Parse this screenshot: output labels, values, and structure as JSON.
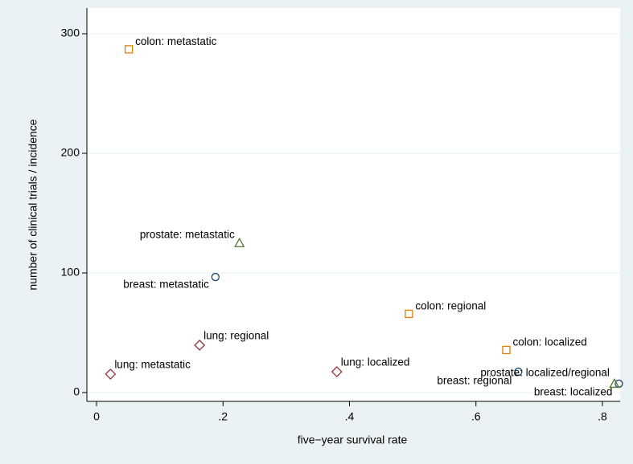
{
  "chart_data": {
    "type": "scatter",
    "x_label": "five−year survival rate",
    "y_label": "number of clinical trials / incidence",
    "xlim": [
      -0.0153,
      0.828
    ],
    "ylim": [
      -7.4,
      321.5
    ],
    "xticks": [
      0,
      {
        "value": 0.2,
        "label": ".2"
      },
      {
        "value": 0.4,
        "label": ".4"
      },
      {
        "value": 0.6,
        "label": ".6"
      },
      {
        "value": 0.8,
        "label": ".8"
      }
    ],
    "yticks": [
      0,
      100,
      200,
      300
    ],
    "grid": true,
    "series": [
      {
        "color": "#1a476f",
        "marker": "circle",
        "labels": [
          "breast: metastatic",
          "breast: regional",
          "breast: localized"
        ],
        "x": [
          0.188,
          0.667,
          0.826
        ],
        "y": [
          96.6,
          17.4,
          7.4
        ]
      },
      {
        "color": "#e37e00",
        "marker": "square",
        "labels": [
          "colon: metastatic",
          "colon: regional",
          "colon: localized"
        ],
        "x": [
          0.051,
          0.494,
          0.648
        ],
        "y": [
          287,
          65.8,
          35.6
        ]
      },
      {
        "color": "#90353b",
        "marker": "diamond",
        "labels": [
          "lung: metastatic",
          "lung: regional",
          "lung: localized"
        ],
        "x": [
          0.022,
          0.163,
          0.38
        ],
        "y": [
          15.4,
          39.6,
          17.4
        ]
      },
      {
        "color": "#55752f",
        "marker": "triangle",
        "labels": [
          "prostate: metastatic",
          "prostate: localized/regional"
        ],
        "x": [
          0.226,
          0.819
        ],
        "y": [
          125,
          7.4
        ]
      }
    ]
  }
}
